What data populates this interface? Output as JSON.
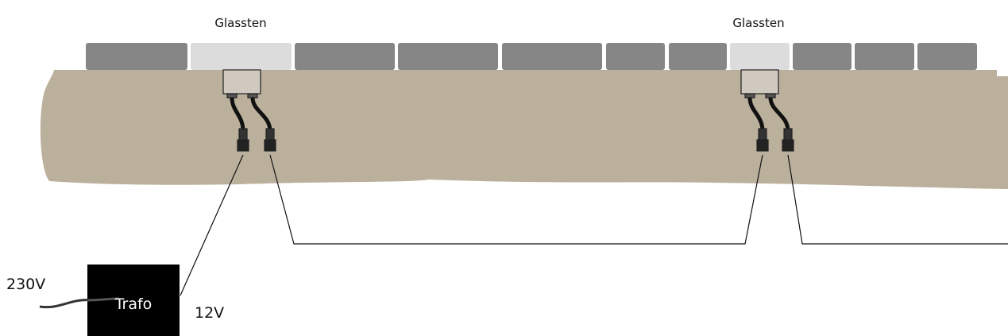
{
  "top_labels": [
    "Glassten",
    "Glassten"
  ],
  "transformer": {
    "label": "Trafo",
    "input": "230V",
    "output": "12V"
  }
}
